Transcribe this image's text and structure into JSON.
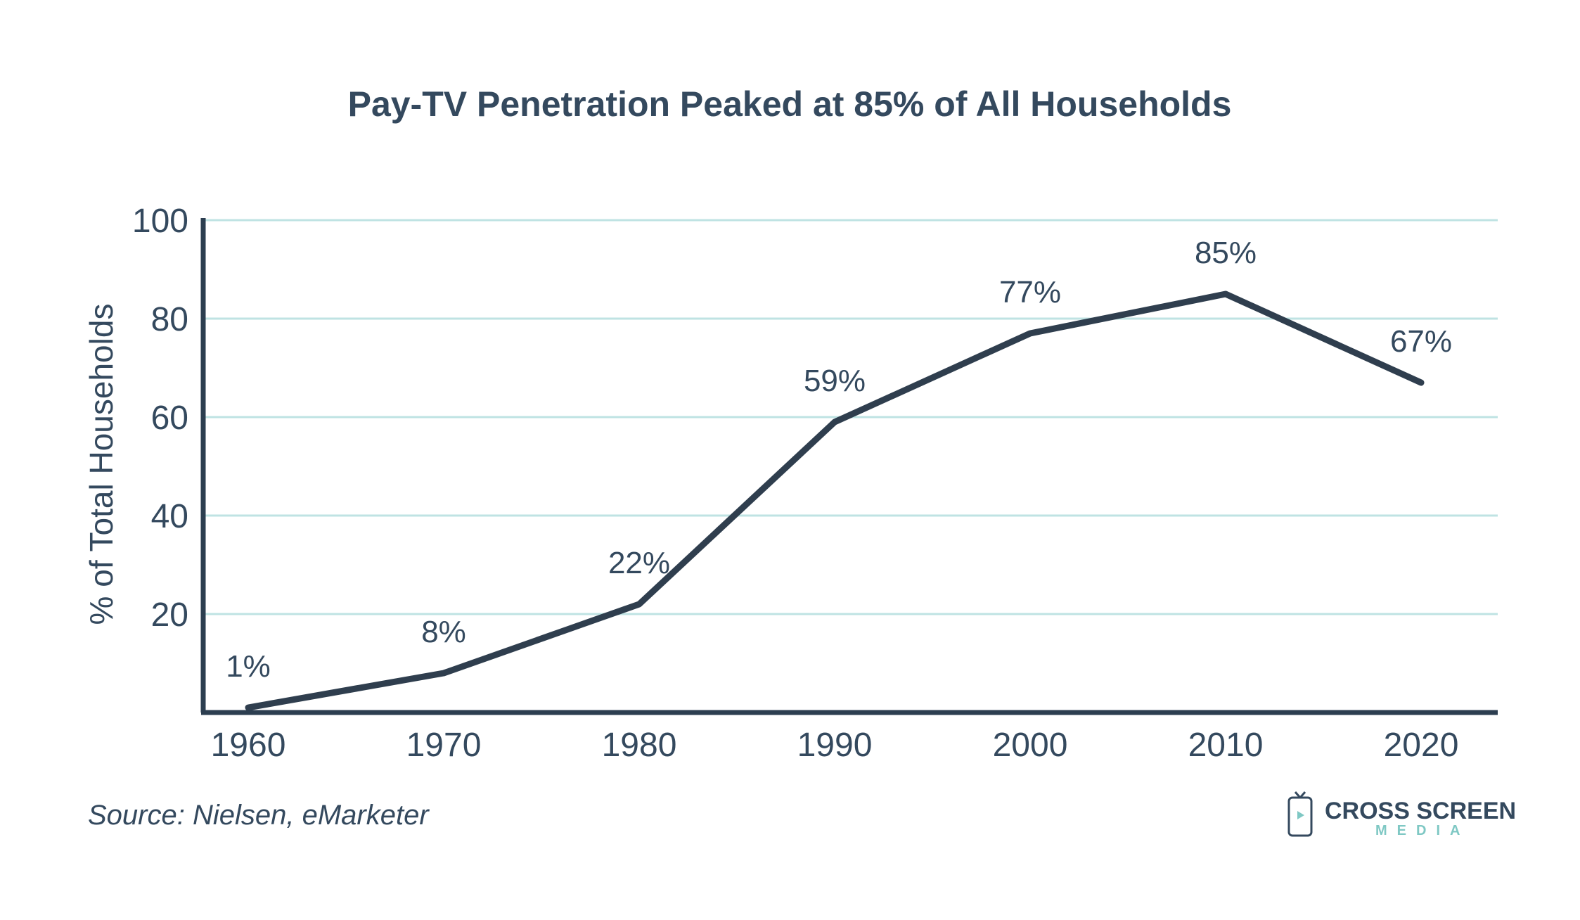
{
  "chart_data": {
    "type": "line",
    "title": "Pay-TV Penetration Peaked at 85% of All Households",
    "xlabel": "",
    "ylabel": "% of Total Households",
    "x": [
      "1960",
      "1970",
      "1980",
      "1990",
      "2000",
      "2010",
      "2020"
    ],
    "values": [
      1,
      8,
      22,
      59,
      77,
      85,
      67
    ],
    "data_labels": [
      "1%",
      "8%",
      "22%",
      "59%",
      "77%",
      "85%",
      "67%"
    ],
    "yticks": [
      "20",
      "40",
      "60",
      "80",
      "100"
    ],
    "ylim": [
      0,
      100
    ],
    "grid": true,
    "source": "Source: Nielsen, eMarketer"
  },
  "branding": {
    "name": "CROSS SCREEN",
    "sub": "MEDIA",
    "icon": "tv-icon"
  },
  "colors": {
    "line": "#2f3e4e",
    "grid": "#bfe3e3",
    "text": "#34495e",
    "accent": "#7fc8c4"
  }
}
